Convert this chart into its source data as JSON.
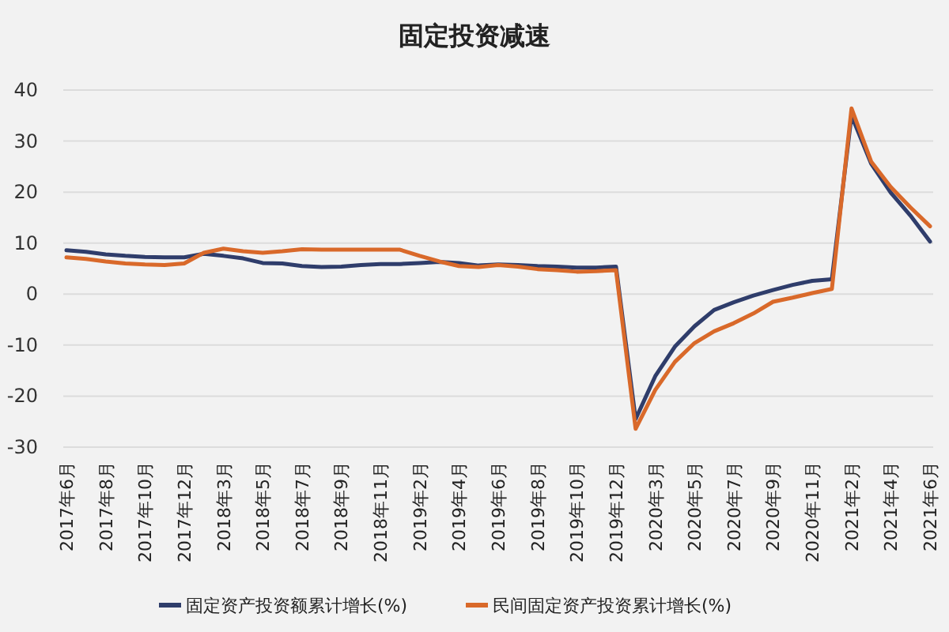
{
  "chart_data": {
    "type": "line",
    "title": "固定投资减速",
    "categories": [
      "2017年6月",
      null,
      "2017年8月",
      null,
      "2017年10月",
      null,
      "2017年12月",
      null,
      "2018年3月",
      null,
      "2018年5月",
      null,
      "2018年7月",
      null,
      "2018年9月",
      null,
      "2018年11月",
      null,
      "2019年2月",
      null,
      "2019年4月",
      null,
      "2019年6月",
      null,
      "2019年8月",
      null,
      "2019年10月",
      null,
      "2019年12月",
      null,
      "2020年3月",
      null,
      "2020年5月",
      null,
      "2020年7月",
      null,
      "2020年9月",
      null,
      "2020年11月",
      null,
      "2021年2月",
      null,
      "2021年4月",
      null,
      "2021年6月"
    ],
    "series": [
      {
        "name": "固定资产投资额累计增长(%)",
        "color": "#2f3d6b",
        "values": [
          8.6,
          8.3,
          7.8,
          7.5,
          7.3,
          7.2,
          7.2,
          7.9,
          7.5,
          7.0,
          6.1,
          6.0,
          5.5,
          5.3,
          5.4,
          5.7,
          5.9,
          5.9,
          6.1,
          6.3,
          6.1,
          5.6,
          5.8,
          5.7,
          5.5,
          5.4,
          5.2,
          5.2,
          5.4,
          -24.5,
          -16.1,
          -10.3,
          -6.3,
          -3.1,
          -1.6,
          -0.3,
          0.8,
          1.8,
          2.6,
          2.9,
          35.0,
          25.6,
          19.9,
          15.4,
          10.3
        ]
      },
      {
        "name": "民间固定资产投资累计增长(%)",
        "color": "#d9692a",
        "values": [
          7.2,
          6.9,
          6.4,
          6.0,
          5.8,
          5.7,
          6.0,
          8.1,
          8.9,
          8.4,
          8.1,
          8.4,
          8.8,
          8.7,
          8.7,
          8.7,
          8.7,
          8.7,
          7.5,
          6.4,
          5.5,
          5.3,
          5.7,
          5.4,
          4.9,
          4.7,
          4.4,
          4.5,
          4.7,
          -26.4,
          -18.8,
          -13.3,
          -9.6,
          -7.3,
          -5.7,
          -3.8,
          -1.5,
          -0.7,
          0.2,
          1.0,
          36.4,
          26.0,
          21.0,
          17.0,
          13.3
        ]
      }
    ],
    "ylim": [
      -30,
      40
    ],
    "yticks": [
      -30,
      -20,
      -10,
      0,
      10,
      20,
      30,
      40
    ],
    "grid": "y",
    "legend": "bottom",
    "marker": "none",
    "line_style": "solid"
  }
}
